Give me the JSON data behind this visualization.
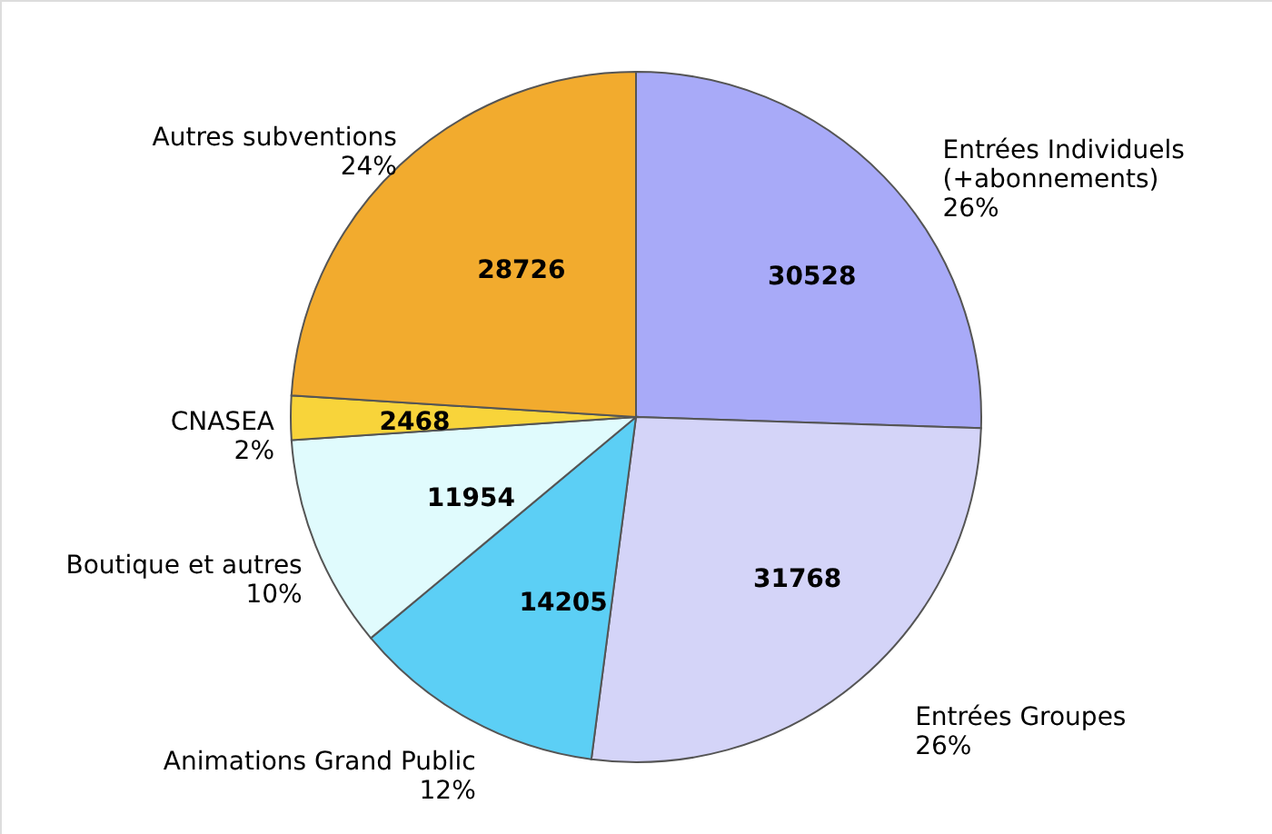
{
  "chart_data": {
    "type": "pie",
    "categories": [
      "Entrées Individuels\n(+abonnements)",
      "Entrées Groupes",
      "Animations Grand Public",
      "Boutique et autres",
      "CNASEA",
      "Autres subventions"
    ],
    "values": [
      30528,
      31768,
      14205,
      11954,
      2468,
      28726
    ],
    "colors": [
      "#a8aaf8",
      "#d4d4f8",
      "#5ccff5",
      "#e0fbfd",
      "#f8d43a",
      "#f2ab2e"
    ],
    "data_labels": true,
    "annotations": [
      "26%",
      "26%",
      "12%",
      "10%",
      "2%",
      "24%"
    ]
  }
}
